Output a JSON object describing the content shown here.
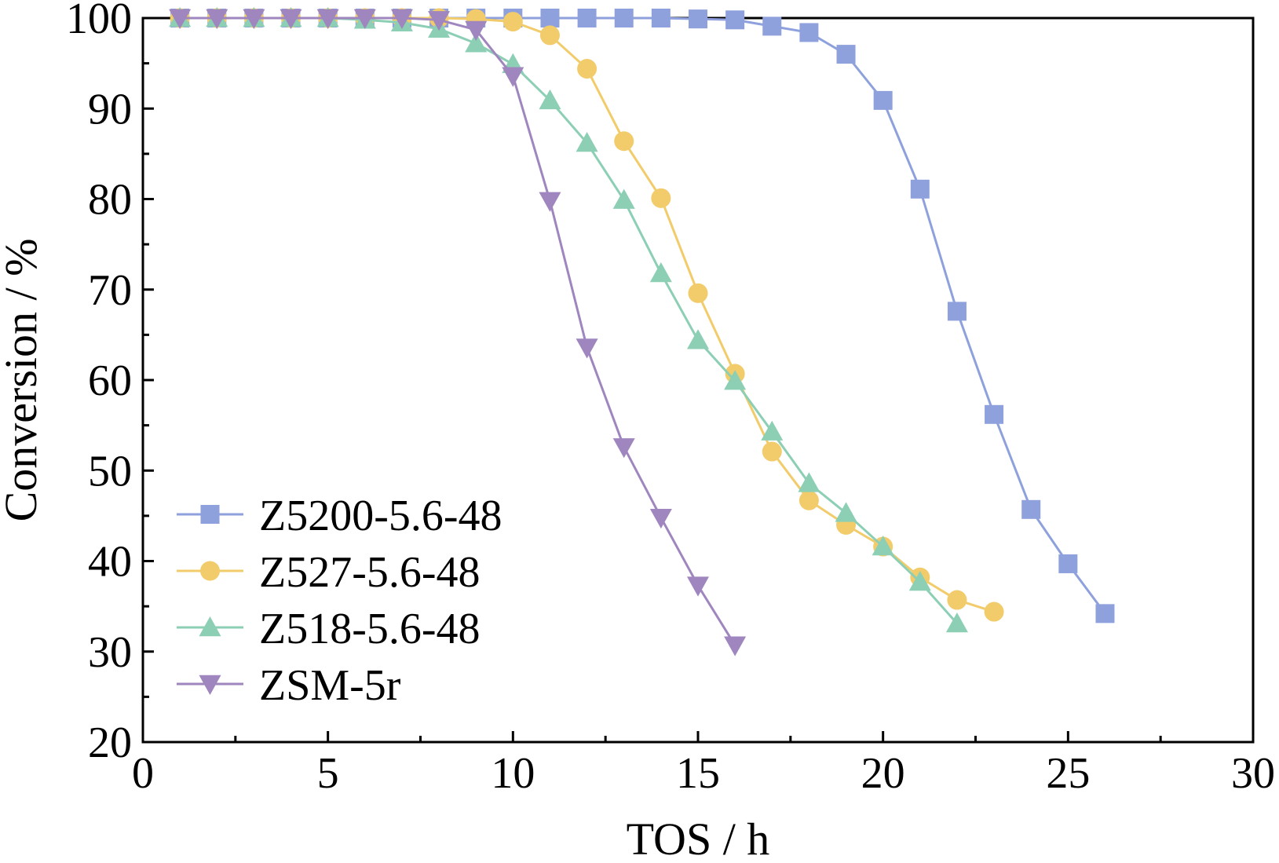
{
  "chart_data": {
    "type": "line",
    "title": "",
    "xlabel": "TOS / h",
    "ylabel": "Conversion / %",
    "xlim": [
      0,
      30
    ],
    "ylim": [
      20,
      100
    ],
    "xticks": [
      0,
      5,
      10,
      15,
      20,
      25,
      30
    ],
    "yticks": [
      20,
      30,
      40,
      50,
      60,
      70,
      80,
      90,
      100
    ],
    "xtick_labels": [
      "0",
      "5",
      "10",
      "15",
      "20",
      "25",
      "30"
    ],
    "ytick_labels": [
      "20",
      "30",
      "40",
      "50",
      "60",
      "70",
      "80",
      "90",
      "100"
    ],
    "grid": false,
    "legend_position": "lower-left",
    "series": [
      {
        "name": "Z5200-5.6-48",
        "color": "#8ea1dd",
        "marker": "square",
        "x": [
          1,
          2,
          3,
          4,
          5,
          6,
          7,
          8,
          9,
          10,
          11,
          12,
          13,
          14,
          15,
          16,
          17,
          18,
          19,
          20,
          21,
          22,
          23,
          24,
          25,
          26
        ],
        "y": [
          100,
          100,
          100,
          100,
          100,
          100,
          100,
          100,
          100,
          100,
          100,
          100,
          100,
          100,
          99.9,
          99.8,
          99.1,
          98.4,
          96.0,
          90.9,
          81.1,
          67.6,
          56.2,
          45.7,
          39.7,
          34.2
        ]
      },
      {
        "name": "Z527-5.6-48",
        "color": "#f2cc6b",
        "marker": "circle",
        "x": [
          1,
          2,
          3,
          4,
          5,
          6,
          7,
          8,
          9,
          10,
          11,
          12,
          13,
          14,
          15,
          16,
          17,
          18,
          19,
          20,
          21,
          22,
          23
        ],
        "y": [
          100,
          100,
          100,
          100,
          100,
          100,
          100,
          100,
          99.9,
          99.6,
          98.1,
          94.4,
          86.4,
          80.1,
          69.6,
          60.7,
          52.1,
          46.7,
          44.0,
          41.6,
          38.2,
          35.7,
          34.4
        ]
      },
      {
        "name": "Z518-5.6-48",
        "color": "#8ccfb5",
        "marker": "triangle-up",
        "x": [
          1,
          2,
          3,
          4,
          5,
          6,
          7,
          8,
          9,
          10,
          11,
          12,
          13,
          14,
          15,
          16,
          17,
          18,
          19,
          20,
          21,
          22
        ],
        "y": [
          100,
          100,
          100,
          100,
          100,
          99.8,
          99.5,
          98.8,
          97.2,
          94.9,
          90.9,
          86.2,
          79.9,
          71.8,
          64.4,
          59.9,
          54.3,
          48.6,
          45.3,
          41.6,
          37.7,
          33.1
        ]
      },
      {
        "name": "ZSM-5r",
        "color": "#9f86be",
        "marker": "triangle-down",
        "x": [
          1,
          2,
          3,
          4,
          5,
          6,
          7,
          8,
          9,
          10,
          11,
          12,
          13,
          14,
          15,
          16
        ],
        "y": [
          100,
          100,
          100,
          100,
          100,
          100,
          100,
          99.8,
          98.7,
          93.6,
          79.8,
          63.6,
          52.6,
          44.8,
          37.3,
          30.7
        ]
      }
    ]
  }
}
